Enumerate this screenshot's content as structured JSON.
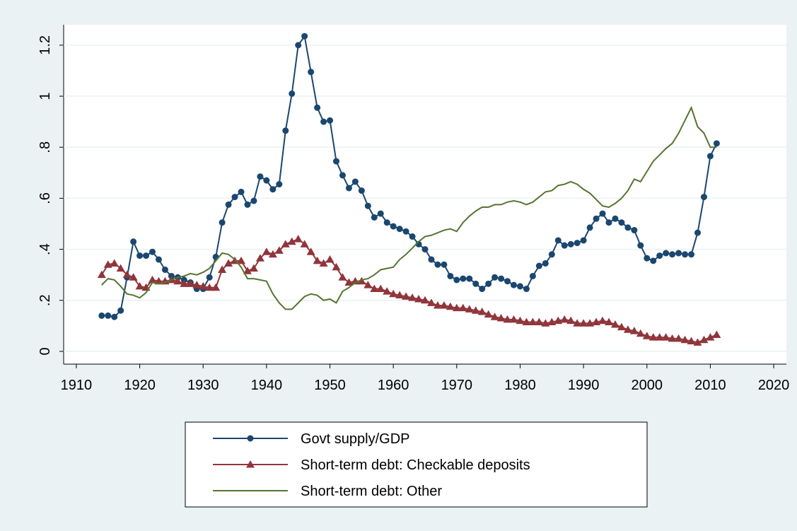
{
  "chart_data": {
    "type": "line",
    "x": [
      1914,
      1915,
      1916,
      1917,
      1918,
      1919,
      1920,
      1921,
      1922,
      1923,
      1924,
      1925,
      1926,
      1927,
      1928,
      1929,
      1930,
      1931,
      1932,
      1933,
      1934,
      1935,
      1936,
      1937,
      1938,
      1939,
      1940,
      1941,
      1942,
      1943,
      1944,
      1945,
      1946,
      1947,
      1948,
      1949,
      1950,
      1951,
      1952,
      1953,
      1954,
      1955,
      1956,
      1957,
      1958,
      1959,
      1960,
      1961,
      1962,
      1963,
      1964,
      1965,
      1966,
      1967,
      1968,
      1969,
      1970,
      1971,
      1972,
      1973,
      1974,
      1975,
      1976,
      1977,
      1978,
      1979,
      1980,
      1981,
      1982,
      1983,
      1984,
      1985,
      1986,
      1987,
      1988,
      1989,
      1990,
      1991,
      1992,
      1993,
      1994,
      1995,
      1996,
      1997,
      1998,
      1999,
      2000,
      2001,
      2002,
      2003,
      2004,
      2005,
      2006,
      2007,
      2008,
      2009,
      2010,
      2011
    ],
    "series": [
      {
        "name": "Govt supply/GDP",
        "color": "#1a476f",
        "marker": "circle",
        "values": [
          0.14,
          0.14,
          0.135,
          0.16,
          0.29,
          0.43,
          0.375,
          0.375,
          0.39,
          0.36,
          0.32,
          0.295,
          0.29,
          0.28,
          0.27,
          0.245,
          0.245,
          0.29,
          0.37,
          0.505,
          0.575,
          0.605,
          0.625,
          0.575,
          0.59,
          0.685,
          0.67,
          0.635,
          0.655,
          0.865,
          1.01,
          1.2,
          1.235,
          1.095,
          0.955,
          0.9,
          0.905,
          0.745,
          0.69,
          0.64,
          0.665,
          0.63,
          0.57,
          0.525,
          0.54,
          0.505,
          0.49,
          0.48,
          0.47,
          0.45,
          0.42,
          0.4,
          0.36,
          0.34,
          0.34,
          0.295,
          0.28,
          0.285,
          0.285,
          0.265,
          0.245,
          0.265,
          0.29,
          0.285,
          0.275,
          0.26,
          0.255,
          0.245,
          0.295,
          0.335,
          0.345,
          0.38,
          0.435,
          0.415,
          0.42,
          0.425,
          0.435,
          0.485,
          0.52,
          0.54,
          0.505,
          0.52,
          0.505,
          0.485,
          0.475,
          0.415,
          0.365,
          0.355,
          0.375,
          0.385,
          0.38,
          0.385,
          0.38,
          0.38,
          0.465,
          0.605,
          0.765,
          0.815
        ]
      },
      {
        "name": "Short-term debt: Checkable deposits",
        "color": "#90353b",
        "marker": "triangle",
        "values": [
          0.3,
          0.34,
          0.345,
          0.325,
          0.3,
          0.29,
          0.255,
          0.25,
          0.28,
          0.275,
          0.275,
          0.28,
          0.275,
          0.265,
          0.265,
          0.26,
          0.255,
          0.25,
          0.25,
          0.32,
          0.345,
          0.355,
          0.355,
          0.315,
          0.325,
          0.365,
          0.39,
          0.38,
          0.395,
          0.42,
          0.43,
          0.44,
          0.42,
          0.39,
          0.355,
          0.345,
          0.36,
          0.33,
          0.29,
          0.27,
          0.275,
          0.275,
          0.26,
          0.245,
          0.245,
          0.235,
          0.225,
          0.22,
          0.215,
          0.21,
          0.205,
          0.2,
          0.19,
          0.18,
          0.18,
          0.175,
          0.17,
          0.17,
          0.165,
          0.16,
          0.155,
          0.145,
          0.135,
          0.13,
          0.125,
          0.125,
          0.12,
          0.115,
          0.115,
          0.115,
          0.11,
          0.115,
          0.12,
          0.125,
          0.12,
          0.11,
          0.11,
          0.11,
          0.115,
          0.12,
          0.115,
          0.105,
          0.095,
          0.085,
          0.08,
          0.07,
          0.06,
          0.055,
          0.055,
          0.055,
          0.05,
          0.05,
          0.045,
          0.04,
          0.035,
          0.045,
          0.055,
          0.065
        ]
      },
      {
        "name": "Short-term debt: Other",
        "color": "#55752f",
        "marker": "none",
        "values": [
          0.26,
          0.285,
          0.28,
          0.255,
          0.225,
          0.22,
          0.21,
          0.23,
          0.27,
          0.265,
          0.27,
          0.28,
          0.29,
          0.295,
          0.305,
          0.3,
          0.31,
          0.325,
          0.355,
          0.385,
          0.38,
          0.36,
          0.33,
          0.285,
          0.285,
          0.28,
          0.275,
          0.225,
          0.19,
          0.165,
          0.165,
          0.19,
          0.215,
          0.225,
          0.22,
          0.2,
          0.205,
          0.19,
          0.235,
          0.25,
          0.27,
          0.28,
          0.285,
          0.3,
          0.32,
          0.325,
          0.33,
          0.36,
          0.38,
          0.405,
          0.43,
          0.45,
          0.455,
          0.465,
          0.475,
          0.48,
          0.47,
          0.505,
          0.53,
          0.55,
          0.565,
          0.565,
          0.575,
          0.575,
          0.585,
          0.59,
          0.585,
          0.575,
          0.585,
          0.605,
          0.625,
          0.63,
          0.65,
          0.655,
          0.665,
          0.655,
          0.635,
          0.62,
          0.595,
          0.57,
          0.565,
          0.58,
          0.6,
          0.63,
          0.675,
          0.665,
          0.705,
          0.745,
          0.77,
          0.795,
          0.815,
          0.855,
          0.905,
          0.955,
          0.88,
          0.855,
          0.8,
          0.8
        ]
      }
    ],
    "xlim": [
      1908,
      2022
    ],
    "xticks": [
      1910,
      1920,
      1930,
      1940,
      1950,
      1960,
      1970,
      1980,
      1990,
      2000,
      2010,
      2020
    ],
    "ylim": [
      -0.05,
      1.28
    ],
    "yticks": [
      0,
      {
        "value": 0.2,
        "label": ".2"
      },
      {
        "value": 0.4,
        "label": ".4"
      },
      {
        "value": 0.6,
        "label": ".6"
      },
      {
        "value": 0.8,
        "label": ".8"
      },
      1,
      1.2
    ],
    "grid": true,
    "legend": "bottom"
  }
}
